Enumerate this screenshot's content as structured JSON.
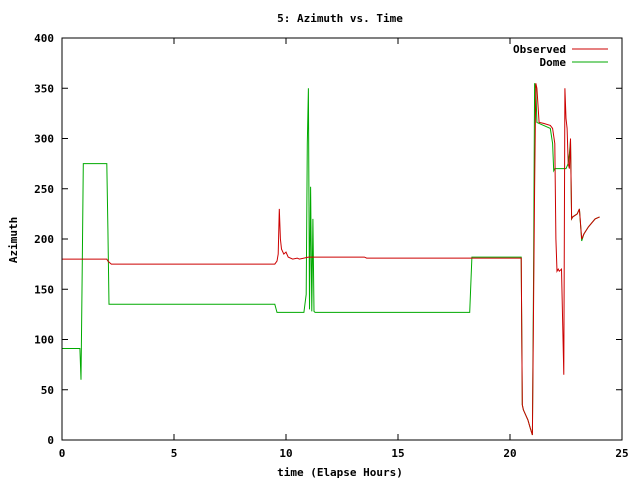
{
  "chart_data": {
    "type": "line",
    "title": "5: Azimuth vs. Time",
    "xlabel": "time (Elapse Hours)",
    "ylabel": "Azimuth",
    "xlim": [
      0,
      25
    ],
    "ylim": [
      0,
      400
    ],
    "xticks": [
      0,
      5,
      10,
      15,
      20,
      25
    ],
    "yticks": [
      0,
      50,
      100,
      150,
      200,
      250,
      300,
      350,
      400
    ],
    "grid": false,
    "legend": "top-right",
    "series": [
      {
        "name": "Observed",
        "color": "#cc0000",
        "x": [
          0.0,
          2.0,
          2.05,
          2.2,
          9.5,
          9.6,
          9.65,
          9.7,
          9.75,
          9.8,
          9.9,
          10.0,
          10.1,
          10.3,
          10.5,
          10.6,
          11.0,
          11.5,
          13.5,
          13.6,
          20.5,
          20.55,
          20.6,
          20.8,
          20.9,
          21.0,
          21.1,
          21.15,
          21.2,
          21.3,
          21.5,
          21.8,
          21.9,
          22.0,
          22.05,
          22.1,
          22.15,
          22.2,
          22.3,
          22.4,
          22.45,
          22.5,
          22.55,
          22.6,
          22.65,
          22.7,
          22.75,
          22.8,
          23.0,
          23.1,
          23.2,
          23.3,
          23.5,
          23.8,
          24.0
        ],
        "y": [
          180,
          180,
          178,
          175,
          175,
          178,
          185,
          230,
          200,
          190,
          185,
          187,
          182,
          180,
          181,
          180,
          182,
          182,
          182,
          181,
          181,
          35,
          30,
          20,
          12,
          5,
          250,
          355,
          350,
          316,
          315,
          313,
          310,
          295,
          200,
          168,
          170,
          168,
          170,
          65,
          350,
          320,
          310,
          275,
          270,
          300,
          220,
          222,
          225,
          230,
          200,
          205,
          212,
          220,
          222
        ]
      },
      {
        "name": "Dome",
        "color": "#00aa00",
        "x": [
          0.0,
          0.8,
          0.85,
          0.9,
          0.95,
          1.0,
          2.0,
          2.05,
          2.1,
          9.5,
          9.6,
          10.8,
          10.9,
          10.95,
          11.0,
          11.05,
          11.1,
          11.15,
          11.2,
          11.25,
          11.3,
          11.35,
          11.4,
          18.2,
          18.3,
          20.5,
          20.55,
          20.6,
          20.8,
          20.9,
          21.0,
          21.05,
          21.1,
          21.15,
          21.2,
          21.3,
          21.5,
          21.8,
          21.9,
          21.95,
          22.0,
          22.1,
          22.3,
          22.5,
          22.6,
          22.65,
          22.7,
          22.75,
          22.8,
          23.0,
          23.1,
          23.2,
          23.3,
          23.5,
          23.8,
          24.0
        ],
        "y": [
          91,
          91,
          60,
          168,
          275,
          275,
          275,
          210,
          135,
          135,
          127,
          127,
          145,
          295,
          350,
          130,
          252,
          128,
          220,
          128,
          127,
          127,
          127,
          127,
          182,
          182,
          35,
          30,
          20,
          12,
          5,
          155,
          355,
          350,
          316,
          315,
          313,
          310,
          295,
          268,
          270,
          270,
          270,
          270,
          275,
          285,
          298,
          220,
          222,
          225,
          230,
          198,
          205,
          212,
          220,
          222
        ]
      }
    ]
  }
}
